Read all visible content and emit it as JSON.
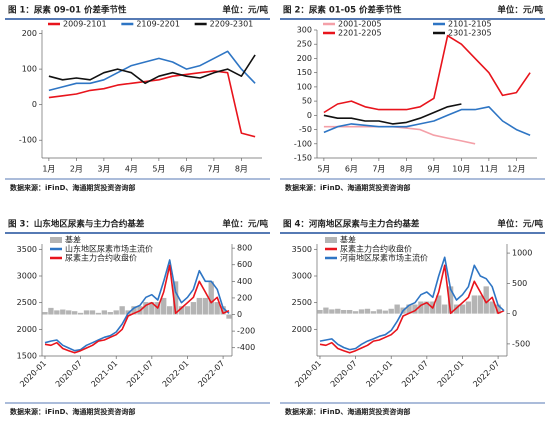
{
  "chart_data": [
    {
      "type": "line",
      "title": "图 1：尿素 09-01 价差季节性",
      "unit": "单位：元/吨",
      "source": "数据来源：iFinD、海通期货投资咨询部",
      "categories": [
        "1月",
        null,
        "2月",
        null,
        "3月",
        null,
        "4月",
        null,
        "5月",
        null,
        "6月",
        null,
        "7月",
        null,
        "8月",
        null
      ],
      "ylim": [
        -150,
        210
      ],
      "yticks": [
        -100,
        0,
        100,
        200
      ],
      "series": [
        {
          "name": "2009-2101",
          "color": "#e8141c",
          "values": [
            20,
            25,
            30,
            40,
            45,
            55,
            60,
            65,
            70,
            80,
            85,
            90,
            95,
            90,
            -80,
            -90
          ]
        },
        {
          "name": "2109-2201",
          "color": "#2e75c4",
          "values": [
            40,
            50,
            60,
            60,
            70,
            90,
            110,
            120,
            130,
            120,
            100,
            110,
            130,
            150,
            100,
            60
          ]
        },
        {
          "name": "2209-2301",
          "color": "#111111",
          "values": [
            80,
            70,
            75,
            70,
            90,
            100,
            90,
            60,
            80,
            90,
            80,
            75,
            90,
            100,
            80,
            140
          ]
        }
      ]
    },
    {
      "type": "line",
      "title": "图 2：尿素 01-05 价差季节性",
      "unit": "单位：元/吨",
      "source": "数据来源：iFinD、海通期货投资咨询部",
      "categories": [
        "5月",
        null,
        "6月",
        null,
        "7月",
        null,
        "8月",
        null,
        "9月",
        null,
        "10月",
        null,
        "11月",
        null,
        "12月",
        null
      ],
      "ylim": [
        -150,
        300
      ],
      "yticks": [
        -150,
        -100,
        -50,
        0,
        50,
        100,
        150,
        200,
        250,
        300
      ],
      "series": [
        {
          "name": "2001-2005",
          "color": "#f4a0a8",
          "values": [
            -40,
            -40,
            -40,
            -40,
            -40,
            -40,
            -45,
            -50,
            -70,
            -80,
            -90,
            -100,
            null,
            null,
            null,
            null
          ]
        },
        {
          "name": "2101-2105",
          "color": "#2e75c4",
          "values": [
            -60,
            -40,
            -30,
            -35,
            -40,
            -40,
            -40,
            -30,
            -20,
            0,
            20,
            20,
            30,
            -20,
            -50,
            -70
          ]
        },
        {
          "name": "2201-2205",
          "color": "#e8141c",
          "values": [
            10,
            40,
            50,
            30,
            20,
            20,
            20,
            30,
            60,
            280,
            250,
            200,
            150,
            70,
            80,
            150
          ]
        },
        {
          "name": "2301-2305",
          "color": "#111111",
          "values": [
            0,
            -10,
            -10,
            -20,
            -20,
            -30,
            -25,
            -10,
            10,
            30,
            40,
            null,
            null,
            null,
            null,
            null
          ]
        }
      ]
    },
    {
      "type": "combo",
      "title": "图 3：山东地区尿素与主力合约基差",
      "unit": "单位：元/吨",
      "source": "数据来源：iFinD、海通期货投资咨询部",
      "categories": [
        "2020-01",
        null,
        null,
        null,
        null,
        null,
        "2020-07",
        null,
        null,
        null,
        null,
        null,
        "2021-01",
        null,
        null,
        null,
        null,
        null,
        "2021-07",
        null,
        null,
        null,
        null,
        null,
        "2022-01",
        null,
        null,
        null,
        null,
        null,
        "2022-07",
        null
      ],
      "ylim": [
        1500,
        3600
      ],
      "yticks": [
        1500,
        2000,
        2500,
        3000,
        3500
      ],
      "y2lim": [
        -500,
        850
      ],
      "y2ticks": [
        -400,
        -200,
        0,
        200,
        400,
        600,
        800
      ],
      "series": [
        {
          "name": "基差",
          "color": "#b4b4b4",
          "axis": "y2",
          "values": [
            30,
            80,
            50,
            60,
            50,
            40,
            20,
            50,
            50,
            20,
            50,
            30,
            50,
            100,
            50,
            100,
            100,
            150,
            150,
            150,
            200,
            100,
            400,
            100,
            100,
            150,
            200,
            200,
            400,
            150,
            100,
            -50
          ]
        },
        {
          "name": "山东地区尿素市场主流价",
          "color": "#2e75c4",
          "values": [
            1750,
            1780,
            1800,
            1700,
            1650,
            1600,
            1620,
            1700,
            1750,
            1800,
            1850,
            1880,
            1950,
            2100,
            2300,
            2400,
            2450,
            2600,
            2650,
            2550,
            2900,
            3300,
            2700,
            2500,
            2600,
            2750,
            3100,
            2900,
            2900,
            2750,
            2400,
            2300
          ]
        },
        {
          "name": "尿素主力合约收盘价",
          "color": "#e8141c",
          "values": [
            1720,
            1700,
            1750,
            1640,
            1600,
            1560,
            1600,
            1650,
            1700,
            1780,
            1800,
            1850,
            1900,
            2000,
            2250,
            2300,
            2350,
            2450,
            2500,
            2400,
            2700,
            3200,
            2300,
            2400,
            2500,
            2600,
            2900,
            2700,
            2500,
            2600,
            2300,
            2350
          ]
        }
      ]
    },
    {
      "type": "combo",
      "title": "图 4：河南地区尿素与主力合约基差",
      "unit": "单位：元/吨",
      "source": "数据来源：iFinD、海通期货投资咨询部",
      "categories": [
        "2020-01",
        null,
        null,
        null,
        null,
        null,
        "2020-07",
        null,
        null,
        null,
        null,
        null,
        "2021-01",
        null,
        null,
        null,
        null,
        null,
        "2021-07",
        null,
        null,
        null,
        null,
        null,
        "2022-01",
        null,
        null,
        null,
        null,
        null,
        "2022-07",
        null
      ],
      "ylim": [
        1500,
        3600
      ],
      "yticks": [
        2000,
        2500,
        3000,
        3500
      ],
      "y2lim": [
        -700,
        1150
      ],
      "y2ticks": [
        -500,
        0,
        500,
        1000
      ],
      "series": [
        {
          "name": "基差",
          "color": "#b4b4b4",
          "axis": "y2",
          "values": [
            60,
            100,
            70,
            80,
            60,
            60,
            40,
            70,
            80,
            40,
            70,
            50,
            80,
            150,
            100,
            150,
            150,
            200,
            200,
            200,
            300,
            150,
            450,
            150,
            150,
            200,
            300,
            300,
            450,
            200,
            150,
            0
          ]
        },
        {
          "name": "尿素主力合约收盘价",
          "color": "#e8141c",
          "values": [
            1720,
            1700,
            1750,
            1640,
            1600,
            1560,
            1600,
            1650,
            1700,
            1780,
            1800,
            1850,
            1900,
            2000,
            2250,
            2300,
            2350,
            2450,
            2500,
            2400,
            2700,
            3200,
            2300,
            2400,
            2500,
            2600,
            2900,
            2700,
            2500,
            2600,
            2300,
            2350
          ]
        },
        {
          "name": "河南地区尿素市场主流价",
          "color": "#2e75c4",
          "values": [
            1780,
            1800,
            1820,
            1720,
            1660,
            1620,
            1640,
            1720,
            1780,
            1820,
            1870,
            1900,
            1980,
            2150,
            2350,
            2450,
            2500,
            2650,
            2700,
            2600,
            3000,
            3350,
            2750,
            2550,
            2650,
            2800,
            3200,
            3000,
            2950,
            2800,
            2450,
            2350
          ]
        }
      ]
    }
  ]
}
